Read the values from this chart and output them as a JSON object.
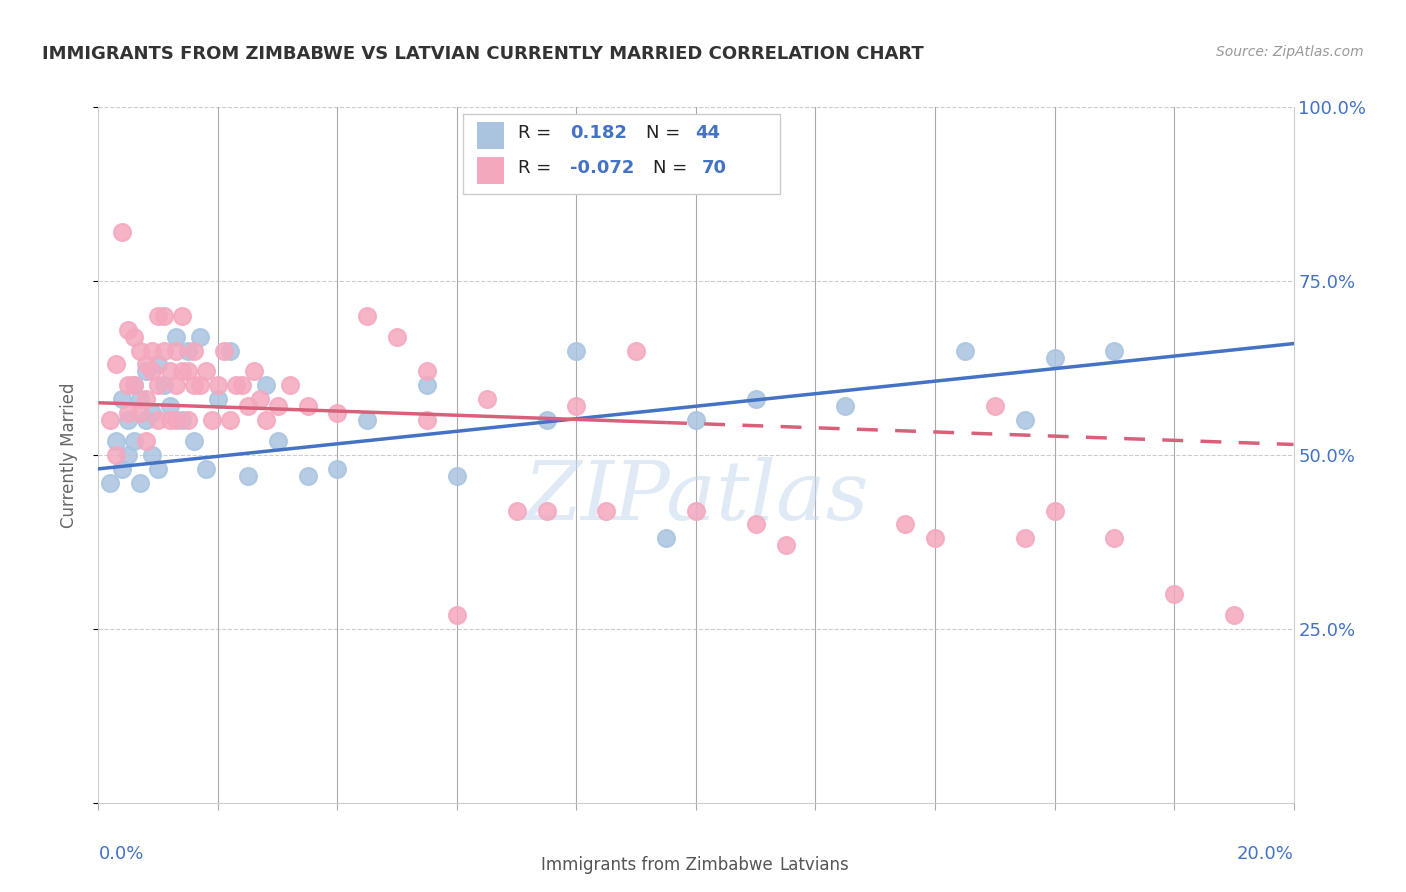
{
  "title": "IMMIGRANTS FROM ZIMBABWE VS LATVIAN CURRENTLY MARRIED CORRELATION CHART",
  "source": "Source: ZipAtlas.com",
  "ylabel": "Currently Married",
  "xlim": [
    0.0,
    20.0
  ],
  "ylim": [
    0.0,
    100.0
  ],
  "legend_blue_r": "0.182",
  "legend_blue_n": "44",
  "legend_pink_r": "-0.072",
  "legend_pink_n": "70",
  "legend_label_blue": "Immigrants from Zimbabwe",
  "legend_label_pink": "Latvians",
  "blue_color": "#aac4e0",
  "pink_color": "#f4a8be",
  "trendline_blue_color": "#4472c4",
  "trendline_pink_color": "#d9607a",
  "right_axis_color": "#4472c4",
  "blue_x": [
    0.2,
    0.3,
    0.4,
    0.4,
    0.5,
    0.5,
    0.6,
    0.6,
    0.7,
    0.7,
    0.8,
    0.8,
    0.9,
    0.9,
    1.0,
    1.0,
    1.1,
    1.2,
    1.3,
    1.4,
    1.5,
    1.6,
    1.7,
    1.8,
    2.0,
    2.2,
    2.5,
    2.8,
    3.0,
    3.5,
    4.0,
    4.5,
    5.5,
    6.0,
    7.5,
    8.0,
    9.5,
    10.0,
    11.0,
    12.5,
    14.5,
    15.5,
    16.0,
    17.0
  ],
  "blue_y": [
    46,
    52,
    48,
    58,
    50,
    55,
    52,
    60,
    58,
    46,
    62,
    55,
    50,
    56,
    63,
    48,
    60,
    57,
    67,
    55,
    65,
    52,
    67,
    48,
    58,
    65,
    47,
    60,
    52,
    47,
    48,
    55,
    60,
    47,
    55,
    65,
    38,
    55,
    58,
    57,
    65,
    55,
    64,
    65
  ],
  "pink_x": [
    0.2,
    0.3,
    0.3,
    0.4,
    0.5,
    0.5,
    0.5,
    0.6,
    0.6,
    0.7,
    0.7,
    0.8,
    0.8,
    0.8,
    0.9,
    0.9,
    1.0,
    1.0,
    1.0,
    1.1,
    1.1,
    1.2,
    1.2,
    1.3,
    1.3,
    1.3,
    1.4,
    1.4,
    1.5,
    1.5,
    1.6,
    1.6,
    1.7,
    1.8,
    1.9,
    2.0,
    2.1,
    2.2,
    2.3,
    2.4,
    2.5,
    2.6,
    2.7,
    2.8,
    3.0,
    3.2,
    3.5,
    4.0,
    4.5,
    5.0,
    5.5,
    5.5,
    6.0,
    6.5,
    7.0,
    7.5,
    8.0,
    8.5,
    9.0,
    10.0,
    11.0,
    11.5,
    13.5,
    14.0,
    15.0,
    15.5,
    16.0,
    17.0,
    18.0,
    19.0
  ],
  "pink_y": [
    55,
    50,
    63,
    82,
    56,
    60,
    68,
    60,
    67,
    56,
    65,
    63,
    58,
    52,
    65,
    62,
    70,
    60,
    55,
    65,
    70,
    62,
    55,
    65,
    60,
    55,
    62,
    70,
    62,
    55,
    60,
    65,
    60,
    62,
    55,
    60,
    65,
    55,
    60,
    60,
    57,
    62,
    58,
    55,
    57,
    60,
    57,
    56,
    70,
    67,
    62,
    55,
    27,
    58,
    42,
    42,
    57,
    42,
    65,
    42,
    40,
    37,
    40,
    38,
    57,
    38,
    42,
    38,
    30,
    27
  ],
  "blue_trend_x0": 0,
  "blue_trend_y0": 48.0,
  "blue_trend_x1": 20,
  "blue_trend_y1": 66.0,
  "pink_trend_x0": 0,
  "pink_trend_y0": 57.5,
  "pink_trend_x1": 20,
  "pink_trend_y1": 51.5,
  "pink_dash_start_x": 9.5,
  "watermark": "ZIPatlas"
}
